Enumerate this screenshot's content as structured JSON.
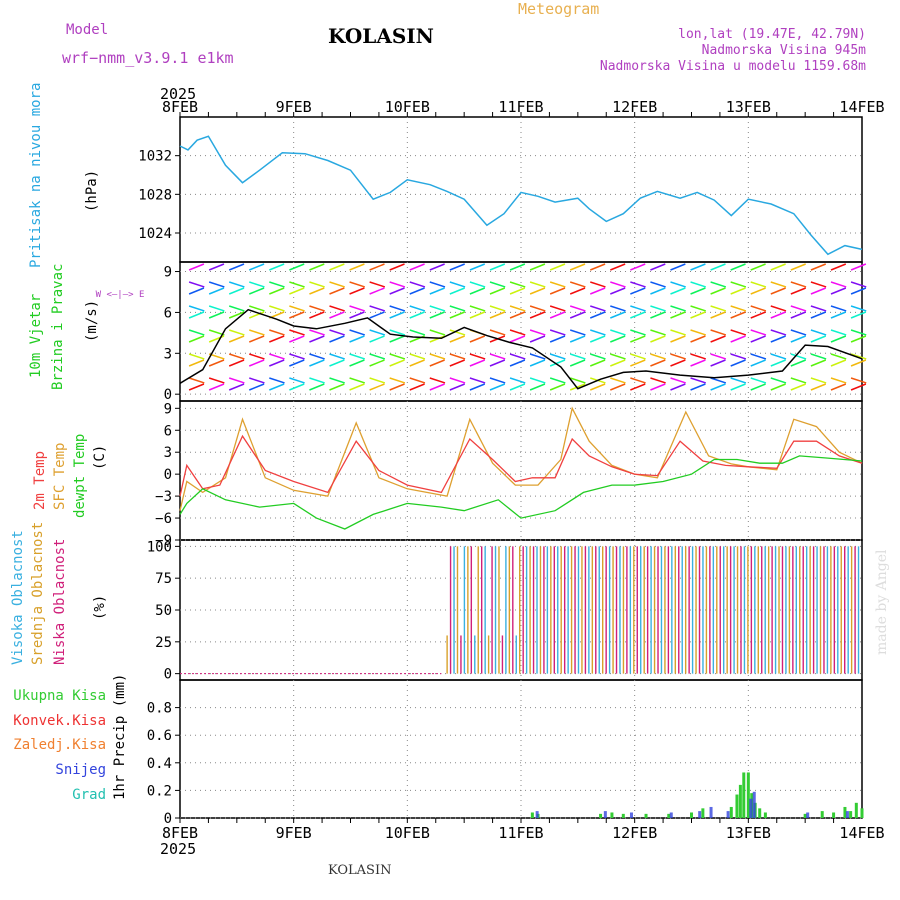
{
  "header": {
    "model_label": "Model",
    "model_name": "wrf−nmm_v3.9.1  e1km",
    "station": "KOLASIN",
    "product": "Meteogram",
    "lonlat": "lon,lat (19.47E, 42.79N)",
    "elevation": "Nadmorska Visina 945m",
    "model_elevation": "Nadmorska Visina u modelu 1159.68m",
    "year": "2025",
    "footer_station": "KOLASIN",
    "credit": "made by Angel"
  },
  "colors": {
    "pressure": "#29a8e0",
    "temp2m": "#f04040",
    "sfc_temp": "#dea030",
    "dewpt": "#22cc22",
    "cloud_high": "#3ab0e0",
    "cloud_mid": "#d8a02a",
    "cloud_low": "#d0207a",
    "precip_total": "#33cc33",
    "precip_conv": "#ee3333",
    "precip_frozen": "#f08030",
    "snow": "#3344dd",
    "hail": "#22c0b0",
    "model_label": "#b040c0",
    "product": "#e8b050",
    "station_info": "#b040c0"
  },
  "chart_data": [
    {
      "type": "line",
      "panel": "pressure",
      "ylabel": "Pritisak na nivou mora",
      "unit": "(hPa)",
      "ylim": [
        1021,
        1036
      ],
      "yticks": [
        1024,
        1028,
        1032
      ],
      "x_categories": [
        "8FEB",
        "9FEB",
        "10FEB",
        "11FEB",
        "12FEB",
        "13FEB",
        "14FEB"
      ],
      "series": [
        {
          "values": [
            [
              0,
              1033.0
            ],
            [
              0.07,
              1032.6
            ],
            [
              0.15,
              1033.6
            ],
            [
              0.25,
              1034.0
            ],
            [
              0.4,
              1031.0
            ],
            [
              0.55,
              1029.2
            ],
            [
              0.7,
              1030.5
            ],
            [
              0.9,
              1032.3
            ],
            [
              1.1,
              1032.2
            ],
            [
              1.3,
              1031.5
            ],
            [
              1.5,
              1030.5
            ],
            [
              1.7,
              1027.5
            ],
            [
              1.85,
              1028.2
            ],
            [
              2.0,
              1029.5
            ],
            [
              2.2,
              1029.0
            ],
            [
              2.35,
              1028.3
            ],
            [
              2.5,
              1027.5
            ],
            [
              2.7,
              1024.8
            ],
            [
              2.85,
              1026.0
            ],
            [
              3.0,
              1028.2
            ],
            [
              3.15,
              1027.8
            ],
            [
              3.3,
              1027.2
            ],
            [
              3.5,
              1027.6
            ],
            [
              3.6,
              1026.5
            ],
            [
              3.75,
              1025.2
            ],
            [
              3.9,
              1026.0
            ],
            [
              4.05,
              1027.6
            ],
            [
              4.2,
              1028.3
            ],
            [
              4.4,
              1027.6
            ],
            [
              4.55,
              1028.2
            ],
            [
              4.7,
              1027.4
            ],
            [
              4.85,
              1025.8
            ],
            [
              5.0,
              1027.5
            ],
            [
              5.2,
              1027.0
            ],
            [
              5.4,
              1026.0
            ],
            [
              5.55,
              1023.8
            ],
            [
              5.7,
              1021.8
            ],
            [
              5.85,
              1022.7
            ],
            [
              6.0,
              1022.3
            ]
          ]
        }
      ]
    },
    {
      "type": "line",
      "panel": "wind",
      "ylabel": "10m Vjetar",
      "ylabel2": "Brzina i Pravac",
      "unit": "(m/s)",
      "compass": "W <—|—> E",
      "ylim": [
        -0.5,
        9.7
      ],
      "yticks": [
        0,
        3,
        6,
        9
      ],
      "series": [
        {
          "values": [
            [
              0,
              0.8
            ],
            [
              0.2,
              1.8
            ],
            [
              0.4,
              4.8
            ],
            [
              0.6,
              6.2
            ],
            [
              0.85,
              5.5
            ],
            [
              1.0,
              5.0
            ],
            [
              1.2,
              4.8
            ],
            [
              1.45,
              5.2
            ],
            [
              1.65,
              5.6
            ],
            [
              1.85,
              4.4
            ],
            [
              2.05,
              4.2
            ],
            [
              2.3,
              4.1
            ],
            [
              2.5,
              4.9
            ],
            [
              2.7,
              4.3
            ],
            [
              2.9,
              3.8
            ],
            [
              3.1,
              3.4
            ],
            [
              3.35,
              2.0
            ],
            [
              3.5,
              0.4
            ],
            [
              3.7,
              1.1
            ],
            [
              3.9,
              1.6
            ],
            [
              4.1,
              1.7
            ],
            [
              4.4,
              1.4
            ],
            [
              4.7,
              1.2
            ],
            [
              5.0,
              1.4
            ],
            [
              5.3,
              1.7
            ],
            [
              5.5,
              3.6
            ],
            [
              5.7,
              3.5
            ],
            [
              6.0,
              2.6
            ]
          ]
        }
      ]
    },
    {
      "type": "line",
      "panel": "temperature",
      "ylabels": [
        "2m Temp",
        "SFC Temp",
        "dewpt Temp"
      ],
      "unit": "(C)",
      "ylim": [
        -9,
        10
      ],
      "yticks": [
        -9,
        -6,
        -3,
        0,
        3,
        6,
        9
      ],
      "series": [
        {
          "name": "2m Temp",
          "values": [
            [
              0,
              -3.0
            ],
            [
              0.06,
              1.2
            ],
            [
              0.2,
              -2.0
            ],
            [
              0.35,
              -1.5
            ],
            [
              0.55,
              5.2
            ],
            [
              0.75,
              0.5
            ],
            [
              1.0,
              -1.0
            ],
            [
              1.3,
              -2.5
            ],
            [
              1.55,
              4.5
            ],
            [
              1.75,
              0.5
            ],
            [
              2.0,
              -1.5
            ],
            [
              2.3,
              -2.5
            ],
            [
              2.55,
              4.8
            ],
            [
              2.75,
              2.0
            ],
            [
              2.95,
              -1.0
            ],
            [
              3.1,
              -0.5
            ],
            [
              3.3,
              -0.5
            ],
            [
              3.45,
              4.8
            ],
            [
              3.6,
              2.5
            ],
            [
              3.8,
              1.0
            ],
            [
              4.0,
              0.0
            ],
            [
              4.2,
              -0.2
            ],
            [
              4.4,
              4.5
            ],
            [
              4.6,
              1.8
            ],
            [
              4.8,
              1.2
            ],
            [
              5.0,
              1.0
            ],
            [
              5.25,
              0.8
            ],
            [
              5.4,
              4.5
            ],
            [
              5.6,
              4.5
            ],
            [
              5.8,
              2.5
            ],
            [
              6.0,
              1.5
            ]
          ]
        },
        {
          "name": "SFC Temp",
          "values": [
            [
              0,
              -5.0
            ],
            [
              0.06,
              -1.0
            ],
            [
              0.2,
              -2.5
            ],
            [
              0.4,
              -0.5
            ],
            [
              0.55,
              7.5
            ],
            [
              0.75,
              -0.5
            ],
            [
              1.0,
              -2.2
            ],
            [
              1.3,
              -3.0
            ],
            [
              1.55,
              7.0
            ],
            [
              1.75,
              -0.5
            ],
            [
              2.0,
              -2.0
            ],
            [
              2.35,
              -3.0
            ],
            [
              2.55,
              7.5
            ],
            [
              2.75,
              1.5
            ],
            [
              2.95,
              -1.5
            ],
            [
              3.15,
              -1.5
            ],
            [
              3.35,
              2.0
            ],
            [
              3.45,
              9.0
            ],
            [
              3.6,
              4.5
            ],
            [
              3.8,
              1.2
            ],
            [
              4.0,
              0.0
            ],
            [
              4.2,
              -0.5
            ],
            [
              4.45,
              8.5
            ],
            [
              4.65,
              2.5
            ],
            [
              4.85,
              1.4
            ],
            [
              5.0,
              1.0
            ],
            [
              5.25,
              0.6
            ],
            [
              5.4,
              7.5
            ],
            [
              5.6,
              6.5
            ],
            [
              5.8,
              3.0
            ],
            [
              6.0,
              1.5
            ]
          ]
        },
        {
          "name": "dewpt Temp",
          "values": [
            [
              0,
              -5.5
            ],
            [
              0.06,
              -4.0
            ],
            [
              0.2,
              -2.0
            ],
            [
              0.4,
              -3.5
            ],
            [
              0.7,
              -4.5
            ],
            [
              1.0,
              -4.0
            ],
            [
              1.2,
              -6.0
            ],
            [
              1.45,
              -7.5
            ],
            [
              1.7,
              -5.5
            ],
            [
              2.0,
              -4.0
            ],
            [
              2.3,
              -4.5
            ],
            [
              2.5,
              -5.0
            ],
            [
              2.8,
              -3.5
            ],
            [
              3.0,
              -6.0
            ],
            [
              3.3,
              -5.0
            ],
            [
              3.55,
              -2.5
            ],
            [
              3.8,
              -1.5
            ],
            [
              4.0,
              -1.5
            ],
            [
              4.25,
              -1.0
            ],
            [
              4.5,
              0.0
            ],
            [
              4.7,
              2.0
            ],
            [
              4.9,
              2.0
            ],
            [
              5.1,
              1.5
            ],
            [
              5.3,
              1.5
            ],
            [
              5.45,
              2.5
            ],
            [
              5.7,
              2.2
            ],
            [
              6.0,
              1.8
            ]
          ]
        }
      ]
    },
    {
      "type": "bar",
      "panel": "cloud",
      "ylabels": [
        "Visoka Oblacnost",
        "Srednja Oblacnost",
        "Niska Oblacnost"
      ],
      "unit": "(%)",
      "ylim": [
        -5,
        105
      ],
      "yticks": [
        0,
        25,
        50,
        75,
        100
      ]
    },
    {
      "type": "bar",
      "panel": "precip",
      "legend": [
        "Ukupna Kisa",
        "Konvek.Kisa",
        "Zaledj.Kisa",
        "Snijeg",
        "Grad"
      ],
      "ylabel": "1hr Precip (mm)",
      "ylim": [
        0,
        1.0
      ],
      "yticks": [
        0,
        0.2,
        0.4,
        0.6,
        0.8
      ],
      "x_labels": [
        "8FEB",
        "9FEB",
        "10FEB",
        "11FEB",
        "12FEB",
        "13FEB",
        "14FEB"
      ],
      "series": [
        {
          "name": "Ukupna Kisa",
          "values": [
            [
              3.1,
              0.04
            ],
            [
              3.15,
              0.03
            ],
            [
              3.7,
              0.03
            ],
            [
              3.8,
              0.04
            ],
            [
              3.9,
              0.03
            ],
            [
              4.1,
              0.03
            ],
            [
              4.3,
              0.03
            ],
            [
              4.5,
              0.04
            ],
            [
              4.6,
              0.07
            ],
            [
              4.85,
              0.08
            ],
            [
              4.9,
              0.17
            ],
            [
              4.93,
              0.24
            ],
            [
              4.96,
              0.33
            ],
            [
              5.0,
              0.33
            ],
            [
              5.03,
              0.18
            ],
            [
              5.06,
              0.11
            ],
            [
              5.1,
              0.07
            ],
            [
              5.15,
              0.04
            ],
            [
              5.5,
              0.03
            ],
            [
              5.65,
              0.05
            ],
            [
              5.75,
              0.04
            ],
            [
              5.85,
              0.08
            ],
            [
              5.9,
              0.05
            ],
            [
              5.95,
              0.11
            ],
            [
              6.0,
              0.07
            ]
          ]
        },
        {
          "name": "Snijeg",
          "values": [
            [
              3.12,
              0.05
            ],
            [
              3.72,
              0.05
            ],
            [
              3.95,
              0.04
            ],
            [
              4.3,
              0.04
            ],
            [
              4.55,
              0.05
            ],
            [
              4.65,
              0.08
            ],
            [
              4.8,
              0.05
            ],
            [
              5.0,
              0.14
            ],
            [
              5.03,
              0.19
            ],
            [
              5.5,
              0.04
            ],
            [
              5.85,
              0.05
            ]
          ]
        }
      ]
    }
  ]
}
